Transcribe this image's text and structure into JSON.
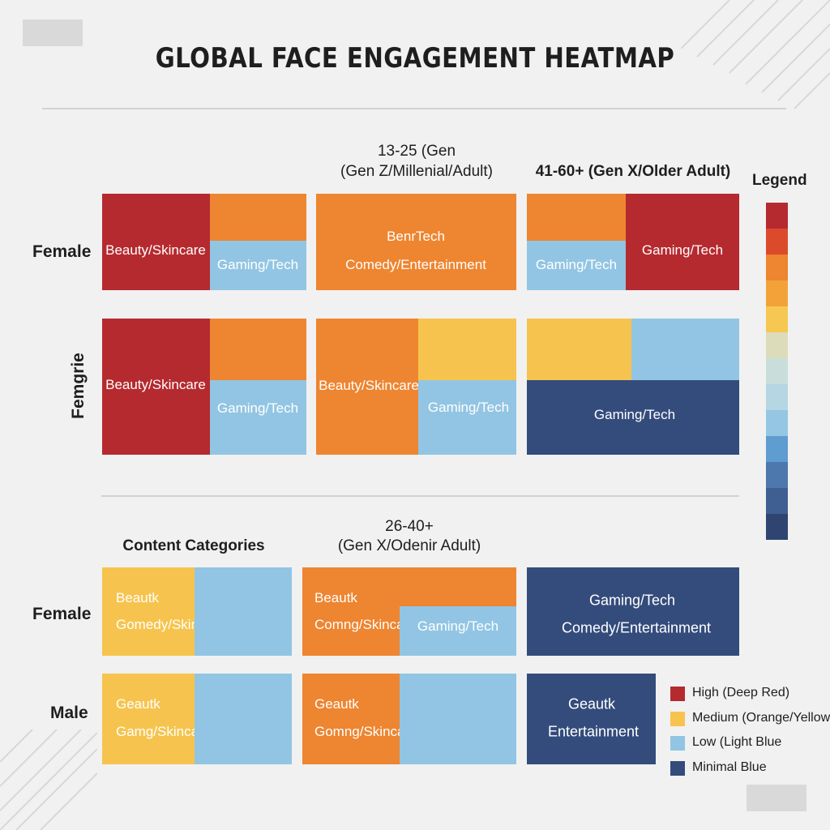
{
  "colors": {
    "deep_red": "#b52a2f",
    "orange": "#ee8530",
    "yellow": "#f6c44e",
    "light_blue": "#92c5e3",
    "navy": "#344c7c"
  },
  "chart_data": {
    "type": "heatmap",
    "title": "GLOBAL FACE ENGAGEMENT HEATMAP",
    "top_section": {
      "column_headers": [
        "13-25 (Gen",
        "(Gen Z/Millenial/Adult)",
        "41-60+ (Gen X/Older Adult)"
      ],
      "rows": [
        {
          "label": "Female",
          "groups": [
            {
              "blocks": [
                {
                  "color": "deep_red",
                  "label": "Beauty/Skincare"
                },
                {
                  "color": "orange",
                  "label": ""
                },
                {
                  "color": "light_blue",
                  "label": "Gaming/Tech"
                }
              ]
            },
            {
              "blocks": [
                {
                  "color": "orange",
                  "label": "BenrTech"
                },
                {
                  "color": "orange",
                  "label": "Comedy/Entertainment"
                }
              ]
            },
            {
              "blocks": [
                {
                  "color": "orange",
                  "label": ""
                },
                {
                  "color": "light_blue",
                  "label": "Gaming/Tech"
                },
                {
                  "color": "deep_red",
                  "label": "Gaming/Tech"
                }
              ]
            }
          ]
        },
        {
          "label": "Femgrie",
          "groups": [
            {
              "blocks": [
                {
                  "color": "deep_red",
                  "label": "Beauty/Skincare"
                },
                {
                  "color": "orange",
                  "label": ""
                },
                {
                  "color": "light_blue",
                  "label": "Gaming/Tech"
                }
              ]
            },
            {
              "blocks": [
                {
                  "color": "orange",
                  "label": "Beauty/Skincare"
                },
                {
                  "color": "yellow",
                  "label": ""
                },
                {
                  "color": "light_blue",
                  "label": "Gaming/Tech"
                }
              ]
            },
            {
              "blocks": [
                {
                  "color": "yellow",
                  "label": ""
                },
                {
                  "color": "light_blue",
                  "label": ""
                },
                {
                  "color": "navy",
                  "label": "Gaming/Tech"
                }
              ]
            }
          ]
        }
      ]
    },
    "bottom_section": {
      "column_headers": [
        "Content Categories",
        "26-40+",
        "(Gen X/Odenir Adult)"
      ],
      "rows": [
        {
          "label": "Female",
          "groups": [
            {
              "blocks": [
                {
                  "color": "yellow",
                  "label": "Beautk"
                },
                {
                  "color": "yellow",
                  "label": "Gomedy/Skincare"
                },
                {
                  "color": "light_blue",
                  "label": ""
                }
              ]
            },
            {
              "blocks": [
                {
                  "color": "orange",
                  "label": "Beautk"
                },
                {
                  "color": "orange",
                  "label": "Comng/Skincare"
                },
                {
                  "color": "light_blue",
                  "label": "Gaming/Tech"
                }
              ]
            },
            {
              "blocks": [
                {
                  "color": "navy",
                  "label": "Gaming/Tech"
                },
                {
                  "color": "navy",
                  "label": "Comedy/Entertainment"
                }
              ]
            }
          ]
        },
        {
          "label": "Male",
          "groups": [
            {
              "blocks": [
                {
                  "color": "yellow",
                  "label": "Geautk"
                },
                {
                  "color": "yellow",
                  "label": "Gamg/Skincare"
                },
                {
                  "color": "light_blue",
                  "label": ""
                }
              ]
            },
            {
              "blocks": [
                {
                  "color": "orange",
                  "label": "Geautk"
                },
                {
                  "color": "orange",
                  "label": "Gomng/Skincare"
                },
                {
                  "color": "light_blue",
                  "label": ""
                }
              ]
            },
            {
              "blocks": [
                {
                  "color": "navy",
                  "label": "Geautk"
                },
                {
                  "color": "navy",
                  "label": "Entertainment"
                }
              ]
            }
          ]
        }
      ]
    },
    "legend": {
      "title": "Legend",
      "scale_colors": [
        "#b52a2f",
        "#dc4a2c",
        "#ee8530",
        "#f3a23a",
        "#f6c851",
        "#dcdcba",
        "#c9dedb",
        "#b5d6e3",
        "#95c6e4",
        "#5f9ccf",
        "#4d78ad",
        "#3f5f92",
        "#2f4470"
      ],
      "keys": [
        {
          "color": "deep_red",
          "label": "High (Deep Red)"
        },
        {
          "color": "yellow",
          "label": "Medium (Orange/Yellow)"
        },
        {
          "color": "light_blue",
          "label": "Low (Light Blue"
        },
        {
          "color": "navy",
          "label": "Minimal Blue"
        }
      ]
    }
  }
}
